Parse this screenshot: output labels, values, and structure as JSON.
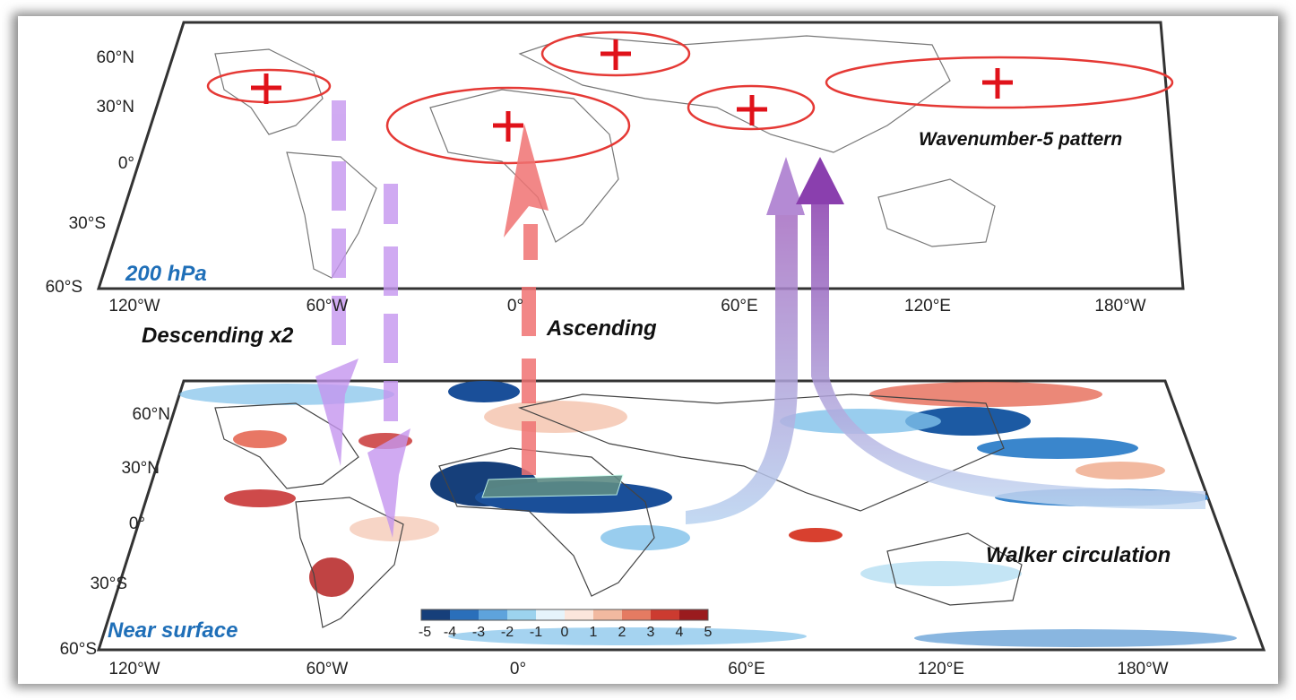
{
  "top_panel": {
    "label": "200 hPa",
    "pattern_label": "Wavenumber-5 pattern",
    "lat_labels": [
      "60°N",
      "30°N",
      "0°",
      "30°S",
      "60°S"
    ],
    "lon_labels": [
      "120°W",
      "60°W",
      "0°",
      "60°E",
      "120°E",
      "180°W"
    ]
  },
  "middle_annotations": {
    "descending": "Descending x2",
    "ascending": "Ascending"
  },
  "bottom_panel": {
    "label": "Near surface",
    "circulation_label": "Walker circulation",
    "lat_labels": [
      "60°N",
      "30°N",
      "0°",
      "30°S",
      "60°S"
    ],
    "lon_labels": [
      "120°W",
      "60°W",
      "0°",
      "60°E",
      "120°E",
      "180°W"
    ],
    "colorbar_ticks": [
      -5,
      -4,
      -3,
      -2,
      -1,
      0,
      1,
      2,
      3,
      4,
      5
    ]
  }
}
